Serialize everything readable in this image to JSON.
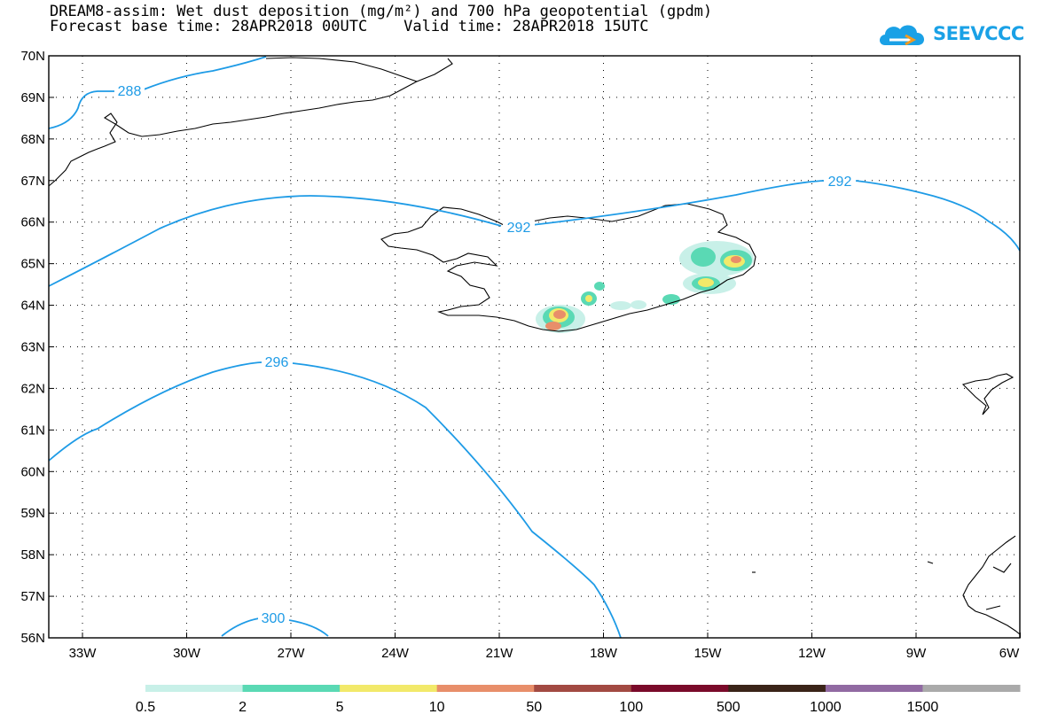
{
  "header": {
    "title_line1": "DREAM8-assim: Wet dust deposition (mg/m²) and 700 hPa geopotential (gpdm)",
    "title_line2": "Forecast base time: 28APR2018 00UTC    Valid time: 28APR2018 15UTC",
    "logo_text": "SEEVCCC",
    "logo_icon": "cloud-icon",
    "logo_color": "#1aa1e6"
  },
  "map": {
    "lon_labels": [
      "33W",
      "30W",
      "27W",
      "24W",
      "21W",
      "18W",
      "15W",
      "12W",
      "9W",
      "6W"
    ],
    "lat_labels": [
      "70N",
      "69N",
      "68N",
      "67N",
      "66N",
      "65N",
      "64N",
      "63N",
      "62N",
      "61N",
      "60N",
      "59N",
      "58N",
      "57N",
      "56N"
    ],
    "contour_color": "#1e9be6",
    "contour_labels": [
      "288",
      "292",
      "292",
      "296",
      "300"
    ]
  },
  "colorbar": {
    "labels": [
      "0.5",
      "2",
      "5",
      "10",
      "50",
      "100",
      "500",
      "1000",
      "1500"
    ],
    "colors": [
      "#c8f0e8",
      "#5ad9b4",
      "#f2e96a",
      "#e88e6a",
      "#a24a42",
      "#7a0a2a",
      "#3a2418",
      "#916aa2",
      "#aaaaaa"
    ]
  }
}
